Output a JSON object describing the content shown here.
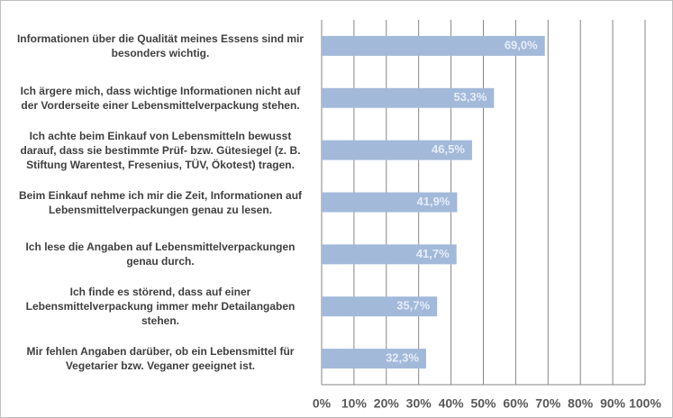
{
  "chart_data": {
    "type": "bar",
    "orientation": "horizontal",
    "categories": [
      "Informationen über die Qualität meines Essens sind mir besonders wichtig.",
      "Ich ärgere mich, dass wichtige Informationen nicht auf der Vorderseite einer Lebensmittelverpackung stehen.",
      "Ich achte beim Einkauf von Lebensmitteln bewusst darauf, dass sie bestimmte Prüf- bzw. Gütesiegel (z. B. Stiftung Warentest, Fresenius, TÜV, Ökotest) tragen.",
      "Beim Einkauf nehme ich mir die Zeit, Informationen auf Lebensmittelverpackungen genau zu lesen.",
      "Ich lese die Angaben auf Lebensmittelverpackungen genau durch.",
      "Ich finde es störend, dass auf einer Lebensmittelverpackung immer mehr Detailangaben stehen.",
      "Mir fehlen Angaben darüber, ob ein Lebensmittel für Vegetarier bzw. Veganer geeignet ist."
    ],
    "values": [
      69.0,
      53.3,
      46.5,
      41.9,
      41.7,
      35.7,
      32.3
    ],
    "value_labels": [
      "69,0%",
      "53,3%",
      "46,5%",
      "41,9%",
      "41,7%",
      "35,7%",
      "32,3%"
    ],
    "color": "#a2b9da",
    "xlim": [
      0,
      100
    ],
    "xticks": [
      {
        "value": 0,
        "label": "0%"
      },
      {
        "value": 10,
        "label": "10%"
      },
      {
        "value": 20,
        "label": "20%"
      },
      {
        "value": 30,
        "label": "30%"
      },
      {
        "value": 40,
        "label": "40%"
      },
      {
        "value": 50,
        "label": "50%"
      },
      {
        "value": 60,
        "label": "60%"
      },
      {
        "value": 70,
        "label": "70%"
      },
      {
        "value": 80,
        "label": "80%"
      },
      {
        "value": 90,
        "label": "90%"
      },
      {
        "value": 100,
        "label": "100%"
      }
    ],
    "grid": true
  }
}
